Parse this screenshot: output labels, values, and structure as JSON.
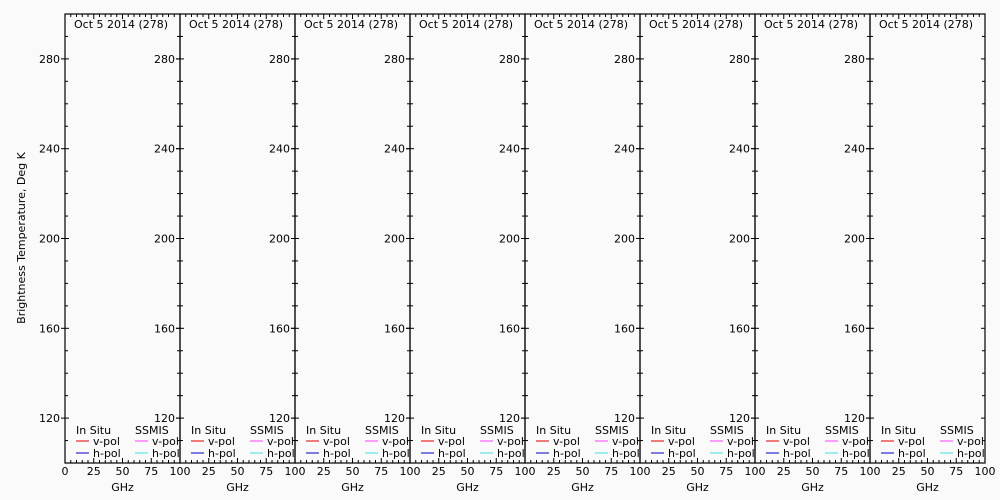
{
  "chart_data": [
    {
      "type": "line",
      "title": "Oct 5 2014 (278)",
      "xlabel": "GHz",
      "ylabel": "Brightness Temperature, Deg K",
      "xlim": [
        0,
        100
      ],
      "ylim": [
        100,
        300
      ],
      "xticks": [
        "0",
        "25",
        "50",
        "75",
        "100"
      ],
      "yticks": [
        "120",
        "160",
        "200",
        "240",
        "280"
      ],
      "legend": {
        "groups": [
          "In Situ",
          "SSMIS"
        ],
        "entries": [
          {
            "label": "v-pol",
            "color": "#e00000"
          },
          {
            "label": "h-pol",
            "color": "#0000c0"
          },
          {
            "label": "v-pol",
            "color": "#ff40ff"
          },
          {
            "label": "h-pol",
            "color": "#40e0e0"
          }
        ],
        "placement": "bottom-left"
      },
      "series": []
    },
    {
      "type": "line",
      "title": "Oct 5 2014 (278)",
      "xlabel": "GHz",
      "xlim": [
        0,
        100
      ],
      "ylim": [
        100,
        300
      ],
      "xticks": [
        "25",
        "50",
        "75",
        "100"
      ],
      "yticks": [
        "120",
        "160",
        "200",
        "240",
        "280"
      ],
      "legend": {
        "groups": [
          "In Situ",
          "SSMIS"
        ],
        "entries": [
          {
            "label": "v-pol",
            "color": "#e00000"
          },
          {
            "label": "h-pol",
            "color": "#0000c0"
          },
          {
            "label": "v-pol",
            "color": "#ff40ff"
          },
          {
            "label": "h-pol",
            "color": "#40e0e0"
          }
        ]
      },
      "series": []
    },
    {
      "type": "line",
      "title": "Oct 5 2014 (278)",
      "xlabel": "GHz",
      "xlim": [
        0,
        100
      ],
      "ylim": [
        100,
        300
      ],
      "xticks": [
        "25",
        "50",
        "75",
        "100"
      ],
      "yticks": [
        "120",
        "160",
        "200",
        "240",
        "280"
      ],
      "legend": {
        "groups": [
          "In Situ",
          "SSMIS"
        ],
        "entries": [
          {
            "label": "v-pol",
            "color": "#e00000"
          },
          {
            "label": "h-pol",
            "color": "#0000c0"
          },
          {
            "label": "v-pol",
            "color": "#ff40ff"
          },
          {
            "label": "h-pol",
            "color": "#40e0e0"
          }
        ]
      },
      "series": []
    },
    {
      "type": "line",
      "title": "Oct 5 2014 (278)",
      "xlabel": "GHz",
      "xlim": [
        0,
        100
      ],
      "ylim": [
        100,
        300
      ],
      "xticks": [
        "25",
        "50",
        "75",
        "100"
      ],
      "yticks": [
        "120",
        "160",
        "200",
        "240",
        "280"
      ],
      "legend": {
        "groups": [
          "In Situ",
          "SSMIS"
        ],
        "entries": [
          {
            "label": "v-pol",
            "color": "#e00000"
          },
          {
            "label": "h-pol",
            "color": "#0000c0"
          },
          {
            "label": "v-pol",
            "color": "#ff40ff"
          },
          {
            "label": "h-pol",
            "color": "#40e0e0"
          }
        ]
      },
      "series": []
    },
    {
      "type": "line",
      "title": "Oct 5 2014 (278)",
      "xlabel": "GHz",
      "xlim": [
        0,
        100
      ],
      "ylim": [
        100,
        300
      ],
      "xticks": [
        "25",
        "50",
        "75",
        "100"
      ],
      "yticks": [
        "120",
        "160",
        "200",
        "240",
        "280"
      ],
      "legend": {
        "groups": [
          "In Situ",
          "SSMIS"
        ],
        "entries": [
          {
            "label": "v-pol",
            "color": "#e00000"
          },
          {
            "label": "h-pol",
            "color": "#0000c0"
          },
          {
            "label": "v-pol",
            "color": "#ff40ff"
          },
          {
            "label": "h-pol",
            "color": "#40e0e0"
          }
        ]
      },
      "series": []
    },
    {
      "type": "line",
      "title": "Oct 5 2014 (278)",
      "xlabel": "GHz",
      "xlim": [
        0,
        100
      ],
      "ylim": [
        100,
        300
      ],
      "xticks": [
        "25",
        "50",
        "75",
        "100"
      ],
      "yticks": [
        "120",
        "160",
        "200",
        "240",
        "280"
      ],
      "legend": {
        "groups": [
          "In Situ",
          "SSMIS"
        ],
        "entries": [
          {
            "label": "v-pol",
            "color": "#e00000"
          },
          {
            "label": "h-pol",
            "color": "#0000c0"
          },
          {
            "label": "v-pol",
            "color": "#ff40ff"
          },
          {
            "label": "h-pol",
            "color": "#40e0e0"
          }
        ]
      },
      "series": []
    },
    {
      "type": "line",
      "title": "Oct 5 2014 (278)",
      "xlabel": "GHz",
      "xlim": [
        0,
        100
      ],
      "ylim": [
        100,
        300
      ],
      "xticks": [
        "25",
        "50",
        "75",
        "100"
      ],
      "yticks": [
        "120",
        "160",
        "200",
        "240",
        "280"
      ],
      "legend": {
        "groups": [
          "In Situ",
          "SSMIS"
        ],
        "entries": [
          {
            "label": "v-pol",
            "color": "#e00000"
          },
          {
            "label": "h-pol",
            "color": "#0000c0"
          },
          {
            "label": "v-pol",
            "color": "#ff40ff"
          },
          {
            "label": "h-pol",
            "color": "#40e0e0"
          }
        ]
      },
      "series": []
    },
    {
      "type": "line",
      "title": "Oct 5 2014 (278)",
      "xlabel": "GHz",
      "xlim": [
        0,
        100
      ],
      "ylim": [
        100,
        300
      ],
      "xticks": [
        "25",
        "50",
        "75",
        "100"
      ],
      "yticks": [
        "120",
        "160",
        "200",
        "240",
        "280"
      ],
      "legend": {
        "groups": [
          "In Situ",
          "SSMIS"
        ],
        "entries": [
          {
            "label": "v-pol",
            "color": "#e00000"
          },
          {
            "label": "h-pol",
            "color": "#0000c0"
          },
          {
            "label": "v-pol",
            "color": "#ff40ff"
          },
          {
            "label": "h-pol",
            "color": "#40e0e0"
          }
        ]
      },
      "series": []
    }
  ]
}
